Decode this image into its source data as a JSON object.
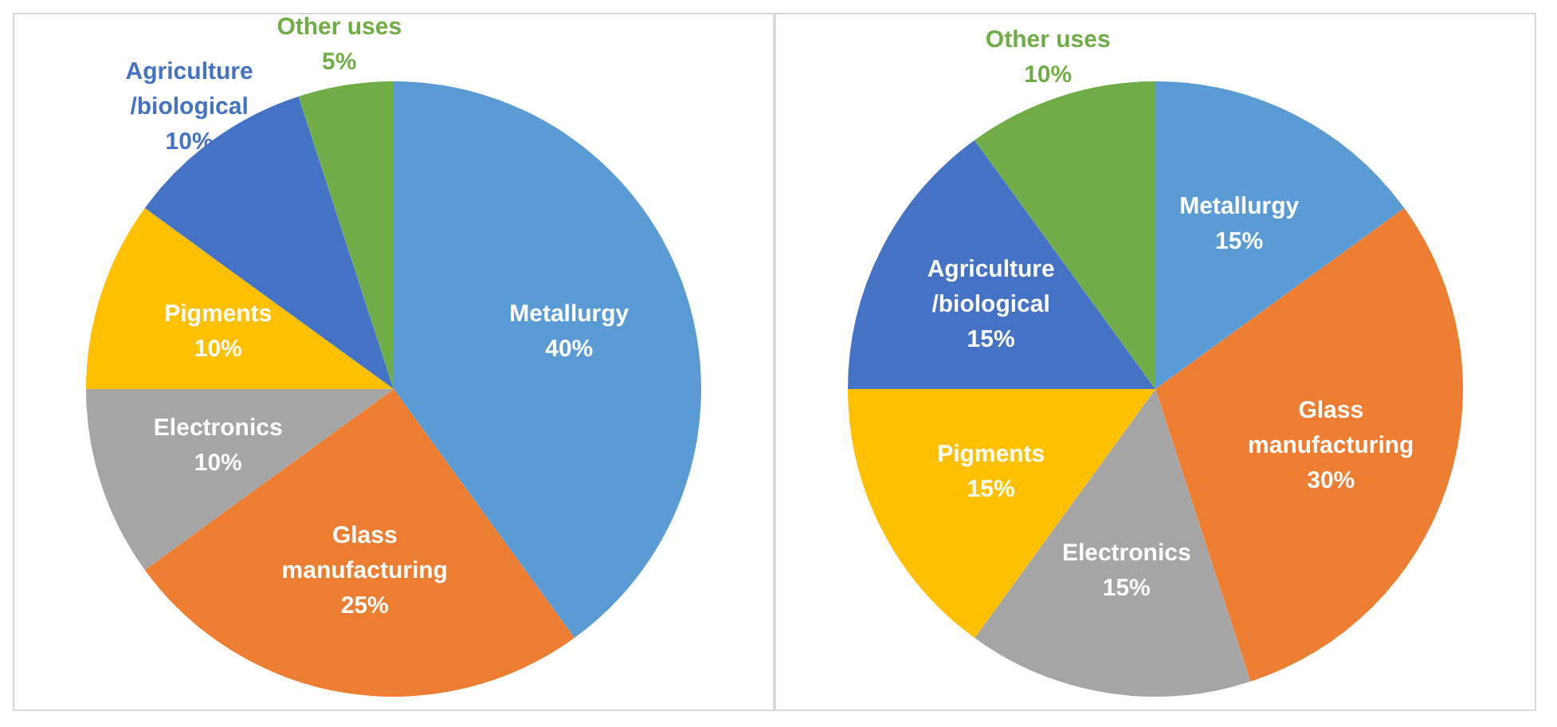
{
  "chart_data": [
    {
      "type": "pie",
      "categories": [
        "Metallurgy",
        "Glass manufacturing",
        "Electronics",
        "Pigments",
        "Agriculture /biological",
        "Other uses"
      ],
      "values": [
        40,
        25,
        10,
        10,
        10,
        5
      ],
      "value_labels": [
        "40%",
        "25%",
        "10%",
        "10%",
        "10%",
        "5%"
      ],
      "colors": [
        "#5b9bd5",
        "#ed7d31",
        "#a5a5a5",
        "#ffc000",
        "#4472c4",
        "#70ad47"
      ],
      "legend": false
    },
    {
      "type": "pie",
      "categories": [
        "Metallurgy",
        "Glass manufacturing",
        "Electronics",
        "Pigments",
        "Agriculture /biological",
        "Other uses"
      ],
      "values": [
        15,
        30,
        15,
        15,
        15,
        10
      ],
      "value_labels": [
        "15%",
        "30%",
        "15%",
        "15%",
        "15%",
        "10%"
      ],
      "colors": [
        "#5b9bd5",
        "#ed7d31",
        "#a5a5a5",
        "#ffc000",
        "#4472c4",
        "#70ad47"
      ],
      "legend": false
    }
  ]
}
